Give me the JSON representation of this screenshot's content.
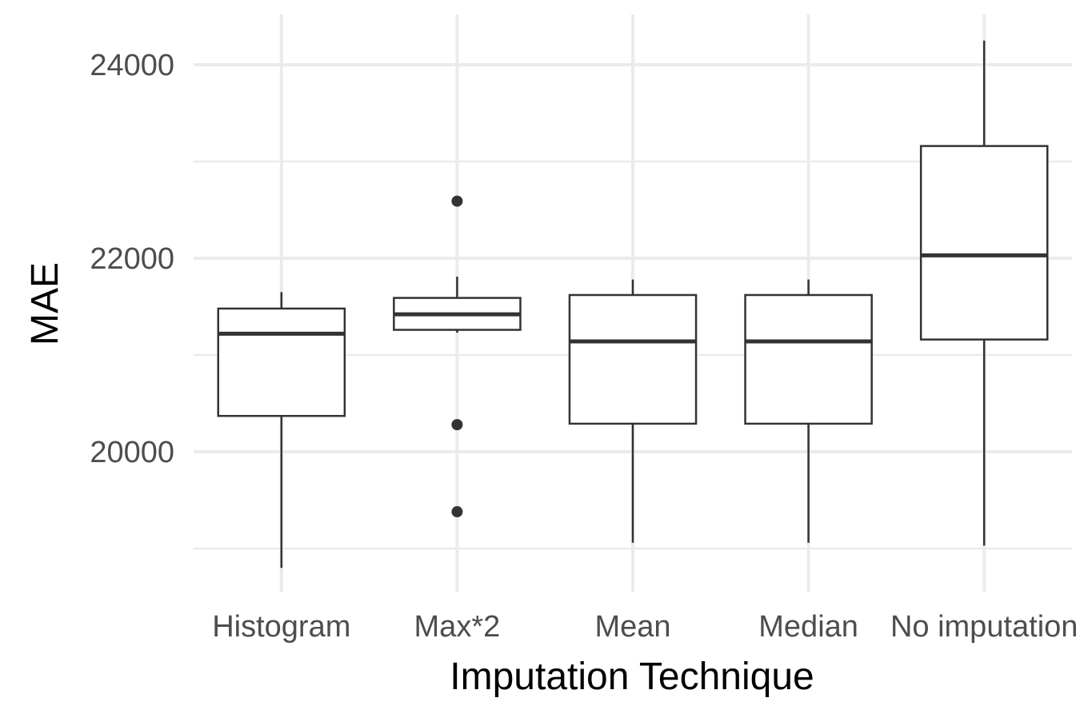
{
  "chart_data": {
    "type": "boxplot",
    "title": "",
    "xlabel": "Imputation Technique",
    "ylabel": "MAE",
    "ylim": [
      18600,
      24500
    ],
    "y_major_ticks": [
      20000,
      22000,
      24000
    ],
    "y_minor_ticks": [
      19000,
      21000,
      23000
    ],
    "grid": true,
    "legend": "none",
    "colors": {
      "box_line": "#333333",
      "box_fill": "#ffffff",
      "grid": "#ebebeb",
      "tick_text": "#4d4d4d"
    },
    "categories": [
      "Histogram",
      "Max*2",
      "Mean",
      "Median",
      "No imputation"
    ],
    "boxes": [
      {
        "category": "Histogram",
        "whisker_low": 18800,
        "q1": 20370,
        "median": 21220,
        "q3": 21480,
        "whisker_high": 21650,
        "outliers": []
      },
      {
        "category": "Max*2",
        "whisker_low": 21230,
        "q1": 21260,
        "median": 21420,
        "q3": 21590,
        "whisker_high": 21810,
        "outliers": [
          22590,
          20280,
          19380
        ]
      },
      {
        "category": "Mean",
        "whisker_low": 19060,
        "q1": 20290,
        "median": 21140,
        "q3": 21620,
        "whisker_high": 21780,
        "outliers": []
      },
      {
        "category": "Median",
        "whisker_low": 19060,
        "q1": 20290,
        "median": 21140,
        "q3": 21620,
        "whisker_high": 21780,
        "outliers": []
      },
      {
        "category": "No imputation",
        "whisker_low": 19030,
        "q1": 21160,
        "median": 22030,
        "q3": 23160,
        "whisker_high": 24250,
        "outliers": []
      }
    ]
  }
}
